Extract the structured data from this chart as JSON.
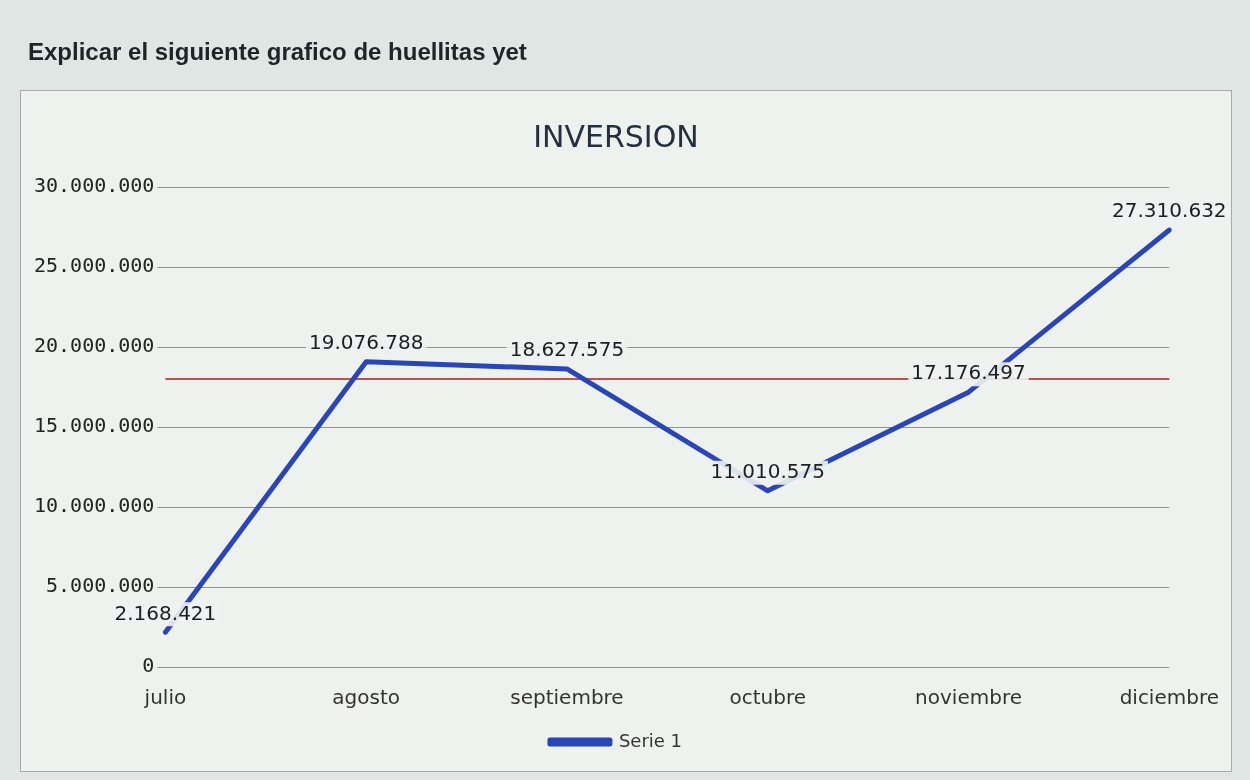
{
  "chart_data": {
    "type": "line",
    "title": "INVERSION",
    "subtitle": "Explicar el siguiente grafico de huellitas yet",
    "categories": [
      "julio",
      "agosto",
      "septiembre",
      "octubre",
      "noviembre",
      "diciembre"
    ],
    "series": [
      {
        "name": "Serie 1",
        "color": "#2a45b8",
        "values": [
          2168421,
          19076788,
          18627575,
          11010575,
          17176497,
          27310632
        ],
        "value_labels": [
          "2.168.421",
          "19.076.788",
          "18.627.575",
          "11.010.575",
          "17.176.497",
          "27.310.632"
        ]
      }
    ],
    "ylim": [
      0,
      30000000
    ],
    "yticks": [
      {
        "value": 0,
        "label": "0"
      },
      {
        "value": 5000000,
        "label": "5.000.000"
      },
      {
        "value": 10000000,
        "label": "10.000.000"
      },
      {
        "value": 15000000,
        "label": "15.000.000"
      },
      {
        "value": 20000000,
        "label": "20.000.000"
      },
      {
        "value": 25000000,
        "label": "25.000.000"
      },
      {
        "value": 30000000,
        "label": "30.000.000"
      }
    ],
    "ref_lines": [
      {
        "axis": "y",
        "value": 18000000,
        "color": "#c0504d"
      }
    ],
    "grid": "y",
    "legend": "bottom",
    "marker": "none",
    "line_style": "solid"
  }
}
